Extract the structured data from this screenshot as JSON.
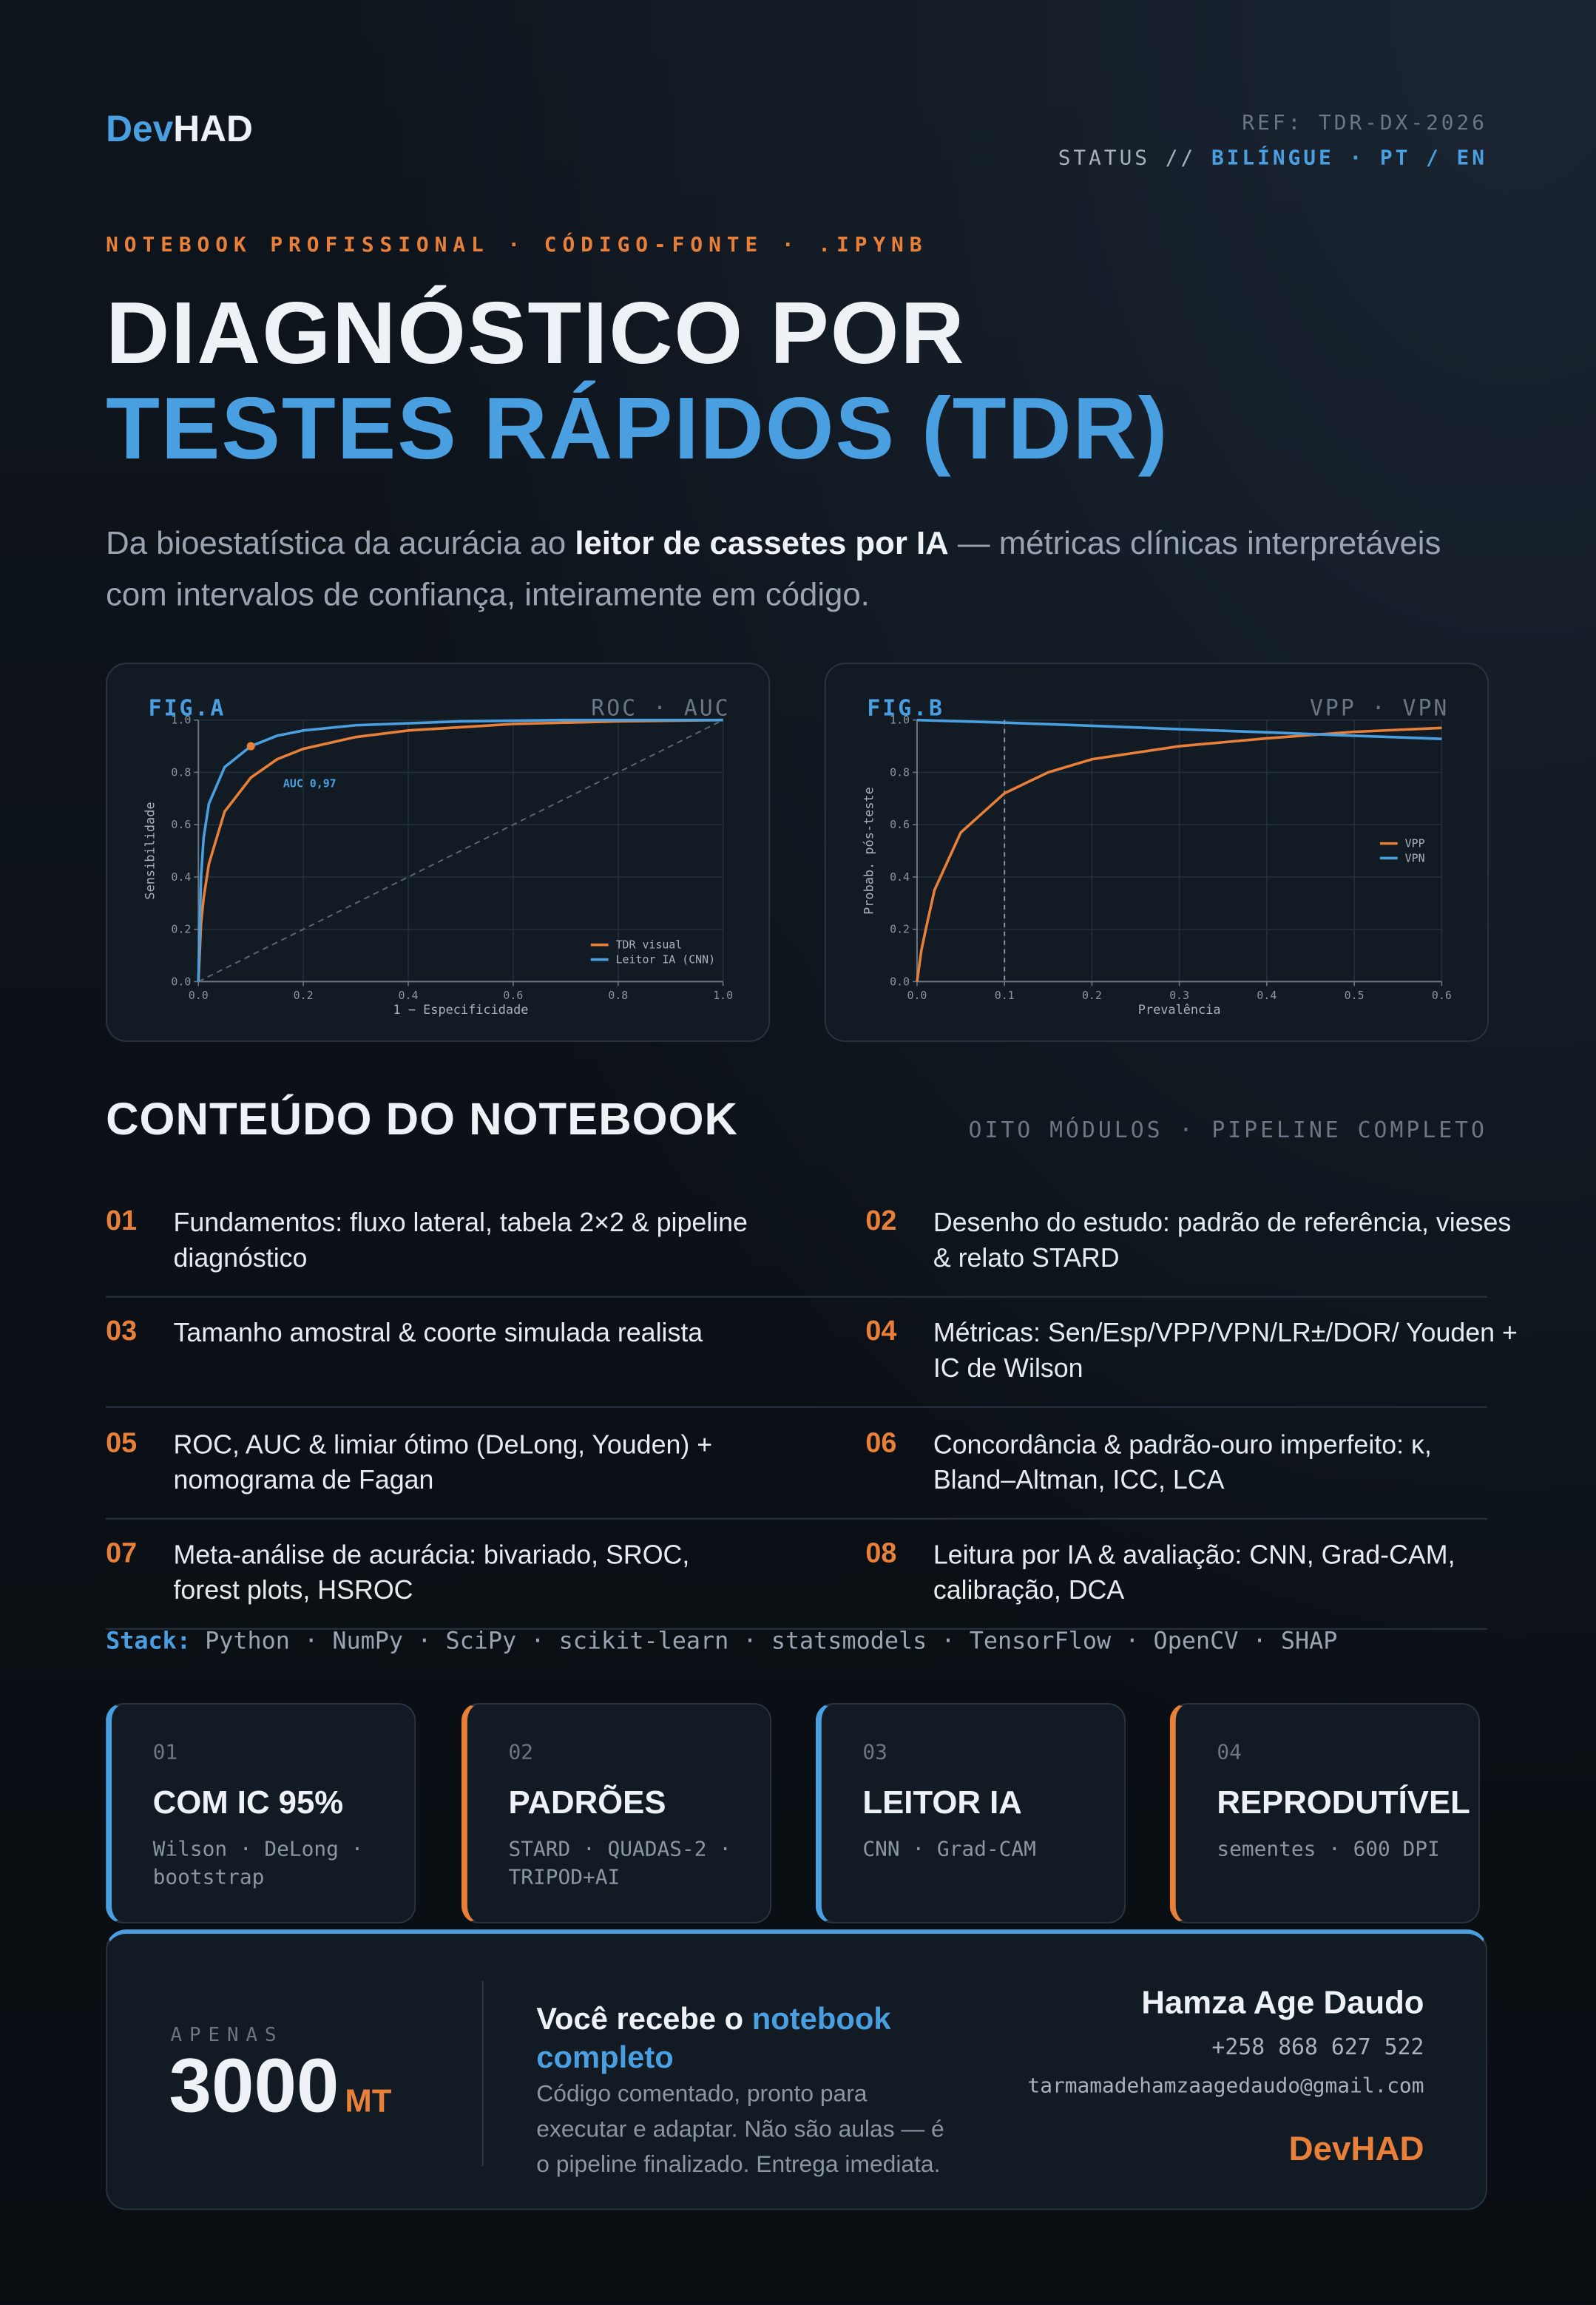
{
  "header": {
    "brand_a": "Dev",
    "brand_b": "HAD",
    "ref": "REF: TDR-DX-2026",
    "status_label": "STATUS //",
    "status_value": "BILÍNGUE · PT / EN"
  },
  "hero": {
    "eyebrow": "NOTEBOOK PROFISSIONAL · CÓDIGO-FONTE · .IPYNB",
    "title_line1": "DIAGNÓSTICO POR",
    "title_line2": "TESTES RÁPIDOS (TDR)",
    "lead_pre": "Da bioestatística da acurácia ao ",
    "lead_bold": "leitor de cassetes por IA",
    "lead_post": " — métricas clínicas interpretáveis com intervalos de confiança, inteiramente em código."
  },
  "chart_data": [
    {
      "type": "line",
      "label": "FIG.A",
      "title": "ROC · AUC",
      "xlabel": "1 − Especificidade",
      "ylabel": "Sensibilidade",
      "xlim": [
        0,
        1
      ],
      "ylim": [
        0,
        1
      ],
      "xticks": [
        {
          "value": 0,
          "label": "0.0"
        },
        0.2,
        0.4,
        0.6,
        0.8,
        {
          "value": 1,
          "label": "1.0"
        }
      ],
      "yticks": [
        {
          "value": 0,
          "label": "0.0"
        },
        0.2,
        0.4,
        0.6,
        0.8,
        {
          "value": 1,
          "label": "1.0"
        }
      ],
      "grid": true,
      "legend": "lower right",
      "reference_diagonal": true,
      "annotation": "AUC 0,97",
      "marker": {
        "x": 0.1,
        "y": 0.9,
        "color": "#e8803a"
      },
      "series": [
        {
          "name": "TDR visual",
          "color": "#e8803a",
          "x": [
            0,
            0.005,
            0.01,
            0.02,
            0.05,
            0.1,
            0.15,
            0.2,
            0.3,
            0.4,
            0.6,
            0.8,
            1
          ],
          "values": [
            0,
            0.22,
            0.32,
            0.45,
            0.65,
            0.78,
            0.85,
            0.89,
            0.935,
            0.96,
            0.985,
            0.995,
            1
          ]
        },
        {
          "name": "Leitor IA (CNN)",
          "color": "#4a9fe0",
          "x": [
            0,
            0.005,
            0.01,
            0.02,
            0.05,
            0.1,
            0.15,
            0.2,
            0.3,
            0.5,
            0.7,
            1
          ],
          "values": [
            0,
            0.4,
            0.55,
            0.68,
            0.82,
            0.9,
            0.94,
            0.96,
            0.98,
            0.995,
            1,
            1
          ]
        }
      ]
    },
    {
      "type": "line",
      "label": "FIG.B",
      "title": "VPP · VPN",
      "xlabel": "Prevalência",
      "ylabel": "Probab. pós-teste",
      "xlim": [
        0,
        0.6
      ],
      "ylim": [
        0,
        1
      ],
      "xticks": [
        {
          "value": 0,
          "label": "0.0"
        },
        0.1,
        0.2,
        0.3,
        0.4,
        0.5,
        0.6
      ],
      "yticks": [
        {
          "value": 0,
          "label": "0.0"
        },
        0.2,
        0.4,
        0.6,
        0.8,
        {
          "value": 1,
          "label": "1.0"
        }
      ],
      "grid": true,
      "legend": "center right",
      "reference_x": 0.1,
      "series": [
        {
          "name": "VPP",
          "color": "#e8803a",
          "x": [
            0,
            0.005,
            0.01,
            0.02,
            0.05,
            0.1,
            0.15,
            0.2,
            0.3,
            0.4,
            0.5,
            0.6
          ],
          "values": [
            0,
            0.12,
            0.2,
            0.35,
            0.57,
            0.72,
            0.8,
            0.85,
            0.9,
            0.93,
            0.955,
            0.97
          ]
        },
        {
          "name": "VPN",
          "color": "#4a9fe0",
          "x": [
            0,
            0.05,
            0.1,
            0.15,
            0.2,
            0.3,
            0.4,
            0.5,
            0.6
          ],
          "values": [
            1,
            0.995,
            0.99,
            0.984,
            0.978,
            0.965,
            0.953,
            0.94,
            0.928
          ]
        }
      ]
    }
  ],
  "contents": {
    "title": "CONTEÚDO DO NOTEBOOK",
    "subtitle": "OITO MÓDULOS · PIPELINE COMPLETO",
    "modules": [
      {
        "num": "01",
        "text": "Fundamentos: fluxo lateral, tabela 2×2 & pipeline diagnóstico"
      },
      {
        "num": "02",
        "text": "Desenho do estudo: padrão de referência, vieses & relato STARD"
      },
      {
        "num": "03",
        "text": "Tamanho amostral & coorte simulada realista"
      },
      {
        "num": "04",
        "text": "Métricas: Sen/Esp/VPP/VPN/LR±/DOR/ Youden + IC de Wilson"
      },
      {
        "num": "05",
        "text": "ROC, AUC & limiar ótimo (DeLong, Youden) + nomograma de Fagan"
      },
      {
        "num": "06",
        "text": "Concordância & padrão-ouro imperfeito: κ, Bland–Altman, ICC, LCA"
      },
      {
        "num": "07",
        "text": "Meta-análise de acurácia: bivariado, SROC, forest plots, HSROC"
      },
      {
        "num": "08",
        "text": "Leitura por IA & avaliação: CNN, Grad-CAM, calibração, DCA"
      }
    ],
    "stack_label": "Stack:",
    "stack": "Python · NumPy · SciPy · scikit-learn · statsmodels · TensorFlow · OpenCV · SHAP"
  },
  "cards": [
    {
      "num": "01",
      "title": "COM IC 95%",
      "sub": "Wilson · DeLong · bootstrap"
    },
    {
      "num": "02",
      "title": "PADRÕES",
      "sub": "STARD · QUADAS-2 · TRIPOD+AI"
    },
    {
      "num": "03",
      "title": "LEITOR IA",
      "sub": "CNN · Grad-CAM"
    },
    {
      "num": "04",
      "title": "REPRODUTÍVEL",
      "sub": "sementes · 600 DPI"
    }
  ],
  "offer": {
    "price_label": "APENAS",
    "price": "3000",
    "currency": "MT",
    "heading_pre": "Você recebe o ",
    "heading_highlight": "notebook completo",
    "body": "Código comentado, pronto para executar e adaptar. Não são aulas — é o pipeline finalizado. Entrega imediata.",
    "name": "Hamza Age Daudo",
    "phone": "+258 868 627 522",
    "email": "tarmamadehamzaagedaudo@gmail.com",
    "brand": "DevHAD"
  }
}
